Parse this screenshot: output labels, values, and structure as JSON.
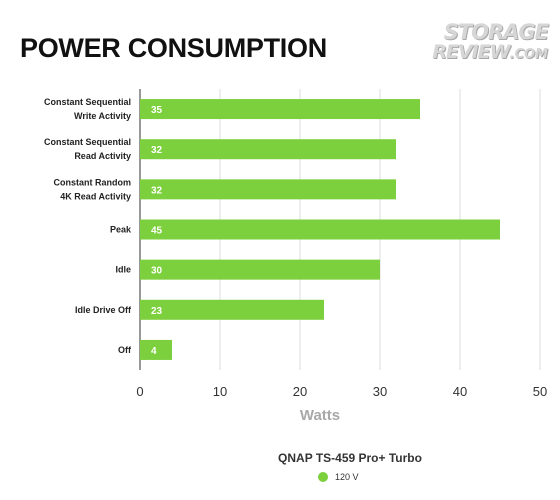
{
  "title": "POWER CONSUMPTION",
  "logo": {
    "line1": "STORAGE",
    "line2": "REVIEW",
    "line2_suffix": ".COM"
  },
  "colors": {
    "bar": "#7ccf3d",
    "grid": "#dddddd",
    "axis": "#555555"
  },
  "chart_data": {
    "type": "bar",
    "orientation": "horizontal",
    "title": "POWER CONSUMPTION",
    "categories": [
      "Constant Sequential\nWrite Activity",
      "Constant Sequential\nRead Activity",
      "Constant Random\n4K Read Activity",
      "Peak",
      "Idle",
      "Idle Drive Off",
      "Off"
    ],
    "series": [
      {
        "name": "120 V",
        "color": "#7ccf3d",
        "values": [
          35,
          32,
          32,
          45,
          30,
          23,
          4
        ]
      }
    ],
    "xlabel": "Watts",
    "xlim": [
      0,
      50
    ],
    "xticks": [
      0,
      10,
      20,
      30,
      40,
      50
    ],
    "grid": true,
    "legend_title": "QNAP TS-459 Pro+ Turbo",
    "legend_position": "bottom"
  }
}
